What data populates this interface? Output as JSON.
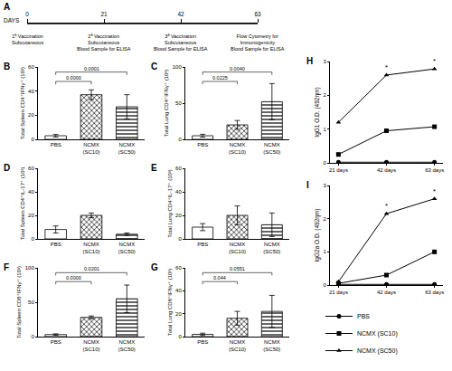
{
  "chart_data": [
    {
      "type": "timeline",
      "title": "A",
      "xlabel": "DAYS",
      "xlim": [
        0,
        63
      ],
      "xticks": [
        0,
        21,
        42,
        63
      ],
      "annotations": [
        {
          "x": 0,
          "text": "1ª Vaccination\nSubcutaneous"
        },
        {
          "x": 21,
          "text": "2ª Vaccination\nSubcutaneous\nBlood Sample for ELISA"
        },
        {
          "x": 42,
          "text": "3ª Vaccination\nSubcutaneous\nBlood Sample for ELISA"
        },
        {
          "x": 63,
          "text": "Flow Cytometry for\nImmunogenicity\nBlood Sample for ELISA"
        }
      ]
    },
    {
      "type": "bar",
      "title": "B",
      "ylabel": "Total Spleen CD4⁺IFNγ⁺ (10³)",
      "categories": [
        "PBS",
        "NCMX (SC10)",
        "NCMX (SC50)"
      ],
      "values": [
        3,
        37,
        27
      ],
      "errors": [
        1,
        4,
        10
      ],
      "color": "#ffffff",
      "ylim": [
        0,
        60
      ],
      "yticks": [
        0,
        20,
        40,
        60
      ],
      "annotations": [
        {
          "from": "PBS",
          "to": "NCMX (SC10)",
          "text": "0.0000"
        },
        {
          "from": "PBS",
          "to": "NCMX (SC50)",
          "text": "0.0001"
        }
      ]
    },
    {
      "type": "bar",
      "title": "C",
      "ylabel": "Total Lung CD4⁺IFNγ⁺ (10³)",
      "categories": [
        "PBS",
        "NCMX (SC10)",
        "NCMX (SC50)"
      ],
      "values": [
        5,
        20,
        52
      ],
      "errors": [
        2,
        6,
        25
      ],
      "color": "#ffffff",
      "ylim": [
        0,
        100
      ],
      "yticks": [
        0,
        50,
        100
      ],
      "annotations": [
        {
          "from": "PBS",
          "to": "NCMX (SC10)",
          "text": "0.0225"
        },
        {
          "from": "PBS",
          "to": "NCMX (SC50)",
          "text": "0.0040"
        }
      ]
    },
    {
      "type": "bar",
      "title": "D",
      "ylabel": "Total Spleen CD4⁺IL-17⁺ (10³)",
      "categories": [
        "PBS",
        "NCMX (SC10)",
        "NCMX (SC50)"
      ],
      "values": [
        8,
        20,
        4
      ],
      "errors": [
        3,
        2,
        1
      ],
      "color": "#ffffff",
      "ylim": [
        0,
        60
      ],
      "yticks": [
        0,
        20,
        40,
        60
      ]
    },
    {
      "type": "bar",
      "title": "E",
      "ylabel": "Total Lung CD4⁺IL-17⁺ (10³)",
      "categories": [
        "PBS",
        "NCMX (SC10)",
        "NCMX (SC50)"
      ],
      "values": [
        10,
        20,
        12
      ],
      "errors": [
        3,
        8,
        10
      ],
      "color": "#ffffff",
      "ylim": [
        0,
        60
      ],
      "yticks": [
        0,
        20,
        40,
        60
      ]
    },
    {
      "type": "bar",
      "title": "F",
      "ylabel": "Total Spleen CD8⁺IFNγ⁺ (10³)",
      "categories": [
        "PBS",
        "NCMX (SC10)",
        "NCMX (SC50)"
      ],
      "values": [
        3,
        28,
        55
      ],
      "errors": [
        1,
        2,
        20
      ],
      "color": "#ffffff",
      "ylim": [
        0,
        100
      ],
      "yticks": [
        0,
        50,
        100
      ],
      "annotations": [
        {
          "from": "PBS",
          "to": "NCMX (SC10)",
          "text": "0.0000"
        },
        {
          "from": "PBS",
          "to": "NCMX (SC50)",
          "text": "0.0201"
        }
      ]
    },
    {
      "type": "bar",
      "title": "G",
      "ylabel": "Total Lung CD8⁺IFNγ⁺ (10³)",
      "categories": [
        "PBS",
        "NCMX (SC10)",
        "NCMX (SC50)"
      ],
      "values": [
        2,
        16,
        22
      ],
      "errors": [
        1,
        6,
        14
      ],
      "color": "#ffffff",
      "ylim": [
        0,
        60
      ],
      "yticks": [
        0,
        20,
        40,
        60
      ],
      "annotations": [
        {
          "from": "PBS",
          "to": "NCMX (SC10)",
          "text": "0.044"
        },
        {
          "from": "PBS",
          "to": "NCMX (SC50)",
          "text": "0.0551"
        }
      ]
    },
    {
      "type": "line",
      "title": "H",
      "ylabel": "IgG1 O.D. (492ηm)",
      "categories": [
        "21 days",
        "42 days",
        "63 days"
      ],
      "series": [
        {
          "name": "PBS",
          "color": "#000000",
          "marker": "circle",
          "values": [
            0.02,
            0.02,
            0.02
          ]
        },
        {
          "name": "NCMX (SC10)",
          "color": "#000000",
          "marker": "square",
          "values": [
            0.25,
            0.95,
            1.07
          ]
        },
        {
          "name": "NCMX (SC50)",
          "color": "#000000",
          "marker": "triangle",
          "values": [
            1.2,
            2.6,
            2.78
          ]
        }
      ],
      "ylim": [
        0,
        3
      ],
      "yticks": [
        0,
        1,
        2,
        3
      ],
      "annotations": [
        {
          "category": "42 days",
          "series": "NCMX (SC50)",
          "text": "*"
        },
        {
          "category": "63 days",
          "series": "NCMX (SC50)",
          "text": "*"
        }
      ]
    },
    {
      "type": "line",
      "title": "I",
      "ylabel": "IgG2a O.D. (492ηm)",
      "categories": [
        "21 days",
        "42 days",
        "63 days"
      ],
      "series": [
        {
          "name": "PBS",
          "color": "#000000",
          "marker": "circle",
          "values": [
            0.02,
            0.02,
            0.02
          ]
        },
        {
          "name": "NCMX (SC10)",
          "color": "#000000",
          "marker": "square",
          "values": [
            0.05,
            0.3,
            1.0
          ]
        },
        {
          "name": "NCMX (SC50)",
          "color": "#000000",
          "marker": "triangle",
          "values": [
            0.1,
            2.15,
            2.6
          ]
        }
      ],
      "ylim": [
        0,
        3
      ],
      "yticks": [
        0,
        1,
        2,
        3
      ],
      "legend": "bottom",
      "annotations": [
        {
          "category": "42 days",
          "series": "NCMX (SC50)",
          "text": "*"
        },
        {
          "category": "63 days",
          "series": "NCMX (SC50)",
          "text": "*"
        }
      ]
    }
  ]
}
